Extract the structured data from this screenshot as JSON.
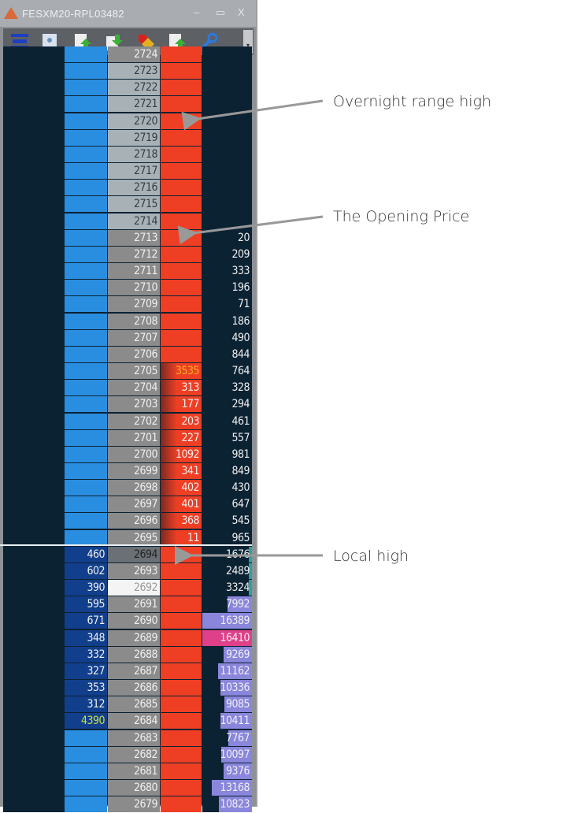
{
  "window": {
    "title": "FESXM20-RPL03482",
    "minimize": "–",
    "maximize": "▭",
    "close": "X"
  },
  "toolbar": {
    "icons": [
      "layers-icon",
      "tooth-icon",
      "export-up-icon",
      "import-down-icon",
      "tag-icon",
      "upload-icon",
      "wrench-icon"
    ],
    "scroll": "▾"
  },
  "colors": {
    "bid": "#2a8ee0",
    "ask": "#ee3f25",
    "price": "#8b8b8b",
    "bg": "#0b2233",
    "vol_bar": "#8a86dc",
    "vol_hot": "#e0408a",
    "vol_teal": "#2aa39a"
  },
  "rows": [
    {
      "price": "2724"
    },
    {
      "price": "2723",
      "light": true
    },
    {
      "price": "2722",
      "light": true
    },
    {
      "price": "2721",
      "light": true
    },
    {
      "price": "2720",
      "light": true
    },
    {
      "price": "2719",
      "light": true
    },
    {
      "price": "2718",
      "light": true
    },
    {
      "price": "2717",
      "light": true
    },
    {
      "price": "2716",
      "light": true
    },
    {
      "price": "2715",
      "light": true
    },
    {
      "price": "2714",
      "light": true
    },
    {
      "price": "2713",
      "vol": "20"
    },
    {
      "price": "2712",
      "vol": "209"
    },
    {
      "price": "2711",
      "vol": "333"
    },
    {
      "price": "2710",
      "vol": "196"
    },
    {
      "price": "2709",
      "vol": "71"
    },
    {
      "price": "2708",
      "vol": "186"
    },
    {
      "price": "2707",
      "vol": "490"
    },
    {
      "price": "2706",
      "vol": "844"
    },
    {
      "price": "2705",
      "ask": "3535",
      "askHot": true,
      "vol": "764"
    },
    {
      "price": "2704",
      "ask": "313",
      "vol": "328"
    },
    {
      "price": "2703",
      "ask": "177",
      "vol": "294"
    },
    {
      "price": "2702",
      "ask": "203",
      "vol": "461"
    },
    {
      "price": "2701",
      "ask": "227",
      "vol": "557"
    },
    {
      "price": "2700",
      "ask": "1092",
      "askWhite": true,
      "vol": "981"
    },
    {
      "price": "2699",
      "ask": "341",
      "vol": "849"
    },
    {
      "price": "2698",
      "ask": "402",
      "vol": "430"
    },
    {
      "price": "2697",
      "ask": "401",
      "vol": "647"
    },
    {
      "price": "2696",
      "ask": "368",
      "vol": "545"
    },
    {
      "price": "2695",
      "ask": "11",
      "vol": "965"
    },
    {
      "price": "2694",
      "bid": "460",
      "hl": true,
      "vol": "1676",
      "teal": true
    },
    {
      "price": "2693",
      "bid": "602",
      "vol": "2489",
      "teal": true
    },
    {
      "price": "2692",
      "bid": "390",
      "cur": true,
      "vol": "3324",
      "teal": true
    },
    {
      "price": "2691",
      "bid": "595",
      "vol": "7992"
    },
    {
      "price": "2690",
      "bid": "671",
      "vol": "16389"
    },
    {
      "price": "2689",
      "bid": "348",
      "vol": "16410",
      "hot": true
    },
    {
      "price": "2688",
      "bid": "332",
      "vol": "9269"
    },
    {
      "price": "2687",
      "bid": "327",
      "vol": "11162"
    },
    {
      "price": "2686",
      "bid": "353",
      "vol": "10336"
    },
    {
      "price": "2685",
      "bid": "312",
      "vol": "9085"
    },
    {
      "price": "2684",
      "bid": "4390",
      "bidHot": true,
      "vol": "10411"
    },
    {
      "price": "2683",
      "vol": "7767"
    },
    {
      "price": "2682",
      "vol": "10097"
    },
    {
      "price": "2681",
      "vol": "9376"
    },
    {
      "price": "2680",
      "vol": "13168"
    },
    {
      "price": "2679",
      "vol": "10823"
    }
  ],
  "annotations": {
    "overnight_high": "Overnight range high",
    "opening_price": "The Opening Price",
    "local_high": "Local high"
  }
}
